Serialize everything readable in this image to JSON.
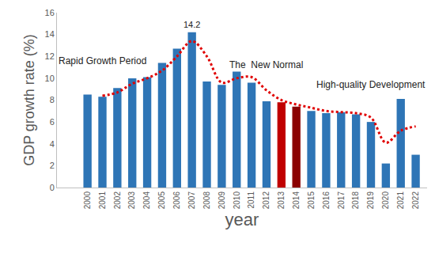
{
  "chart_data": {
    "type": "bar",
    "x_label": "year",
    "y_label": "GDP growth rate (%)",
    "categories": [
      "2000",
      "2001",
      "2002",
      "2003",
      "2004",
      "2005",
      "2006",
      "2007",
      "2008",
      "2009",
      "2010",
      "2011",
      "2012",
      "2013",
      "2014",
      "2015",
      "2016",
      "2017",
      "2018",
      "2019",
      "2020",
      "2021",
      "2022"
    ],
    "series": [
      {
        "type": "bar",
        "values": [
          8.5,
          8.3,
          9.1,
          10.0,
          10.1,
          11.4,
          12.7,
          14.2,
          9.7,
          9.4,
          10.6,
          9.6,
          7.9,
          7.8,
          7.4,
          7.0,
          6.8,
          6.9,
          6.7,
          6.0,
          2.2,
          8.1,
          3.0
        ],
        "colors": [
          "#2e75b6",
          "#2e75b6",
          "#2e75b6",
          "#2e75b6",
          "#2e75b6",
          "#2e75b6",
          "#2e75b6",
          "#2e75b6",
          "#2e75b6",
          "#2e75b6",
          "#2e75b6",
          "#2e75b6",
          "#2e75b6",
          "#c00000",
          "#8b0000",
          "#2e75b6",
          "#2e75b6",
          "#2e75b6",
          "#2e75b6",
          "#2e75b6",
          "#2e75b6",
          "#2e75b6",
          "#2e75b6"
        ]
      },
      {
        "type": "line",
        "color": "#e00000",
        "line_style": "dot",
        "values": [
          null,
          8.4,
          8.7,
          9.5,
          10.0,
          10.7,
          12.0,
          13.4,
          12.0,
          9.6,
          10.0,
          10.1,
          8.9,
          8.0,
          7.6,
          7.3,
          7.0,
          6.9,
          6.8,
          6.4,
          4.1,
          5.2,
          5.6
        ]
      }
    ],
    "ylim": [
      0,
      16
    ],
    "yticks": [
      0,
      2,
      4,
      6,
      8,
      10,
      12,
      14,
      16
    ],
    "grid": false,
    "annotations": [
      {
        "text": "14.2",
        "x": "2007",
        "y": 14.2
      },
      {
        "text": "Rapid Growth Period",
        "x": "2001",
        "y": 10.8
      },
      {
        "text": "The  New Normal",
        "x": "2012",
        "y": 10.4
      },
      {
        "text": "High-quality Development",
        "x": "2019",
        "y": 8.6
      }
    ]
  }
}
